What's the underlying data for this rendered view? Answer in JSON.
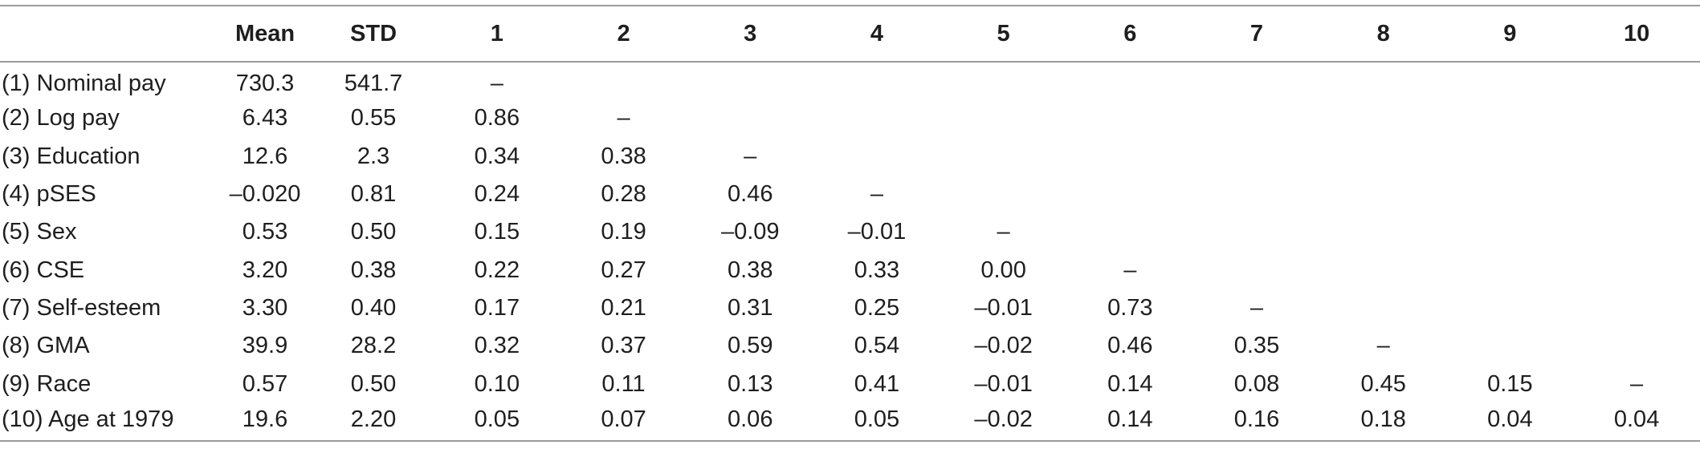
{
  "table": {
    "headers": [
      "",
      "Mean",
      "STD",
      "1",
      "2",
      "3",
      "4",
      "5",
      "6",
      "7",
      "8",
      "9",
      "10"
    ],
    "rows": [
      [
        "(1) Nominal pay",
        "730.3",
        "541.7",
        "–",
        "",
        "",
        "",
        "",
        "",
        "",
        "",
        "",
        ""
      ],
      [
        "(2) Log pay",
        "6.43",
        "0.55",
        "0.86",
        "–",
        "",
        "",
        "",
        "",
        "",
        "",
        "",
        ""
      ],
      [
        "(3) Education",
        "12.6",
        "2.3",
        "0.34",
        "0.38",
        "–",
        "",
        "",
        "",
        "",
        "",
        "",
        ""
      ],
      [
        "(4) pSES",
        "–0.020",
        "0.81",
        "0.24",
        "0.28",
        "0.46",
        "–",
        "",
        "",
        "",
        "",
        "",
        ""
      ],
      [
        "(5) Sex",
        "0.53",
        "0.50",
        "0.15",
        "0.19",
        "–0.09",
        "–0.01",
        "–",
        "",
        "",
        "",
        "",
        ""
      ],
      [
        "(6) CSE",
        "3.20",
        "0.38",
        "0.22",
        "0.27",
        "0.38",
        "0.33",
        "0.00",
        "–",
        "",
        "",
        "",
        ""
      ],
      [
        "(7) Self-esteem",
        "3.30",
        "0.40",
        "0.17",
        "0.21",
        "0.31",
        "0.25",
        "–0.01",
        "0.73",
        "–",
        "",
        "",
        ""
      ],
      [
        "(8) GMA",
        "39.9",
        "28.2",
        "0.32",
        "0.37",
        "0.59",
        "0.54",
        "–0.02",
        "0.46",
        "0.35",
        "–",
        "",
        ""
      ],
      [
        "(9) Race",
        "0.57",
        "0.50",
        "0.10",
        "0.11",
        "0.13",
        "0.41",
        "–0.01",
        "0.14",
        "0.08",
        "0.45",
        "0.15",
        "–"
      ],
      [
        "(10) Age at 1979",
        "19.6",
        "2.20",
        "0.05",
        "0.07",
        "0.06",
        "0.05",
        "–0.02",
        "0.14",
        "0.16",
        "0.18",
        "0.04",
        "0.04"
      ]
    ]
  }
}
